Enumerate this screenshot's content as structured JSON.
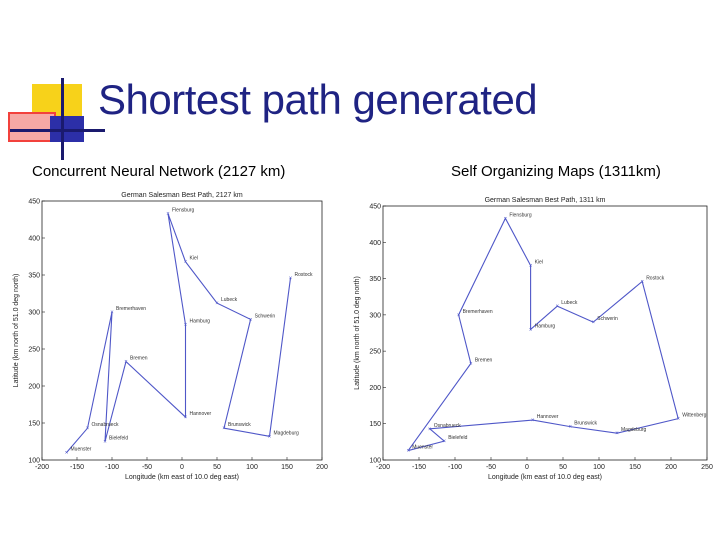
{
  "slide": {
    "title": "Shortest path generated",
    "caption_left": "Concurrent Neural Network (2127 km)",
    "caption_right": "Self Organizing Maps (1311km)"
  },
  "colors": {
    "title": "#1f2383",
    "path_line": "#4f57c8",
    "deco_yellow": "#f7d21a",
    "deco_red": "#f2413c",
    "deco_blue": "#2c2fa8"
  },
  "chart_data": [
    {
      "type": "line",
      "title": "German Salesman Best Path, 2127 km",
      "xlabel": "Longitude (km east of 10.0 deg east)",
      "ylabel": "Latitude (km north of 51.0 deg north)",
      "xlim": [
        -200,
        200
      ],
      "ylim": [
        100,
        450
      ],
      "xticks": [
        -200,
        -150,
        -100,
        -50,
        0,
        50,
        100,
        150,
        200
      ],
      "yticks": [
        100,
        150,
        200,
        250,
        300,
        350,
        400,
        450
      ],
      "grid": false,
      "cities": [
        {
          "name": "Flensburg",
          "x": -20,
          "y": 433
        },
        {
          "name": "Kiel",
          "x": 5,
          "y": 368
        },
        {
          "name": "Rostock",
          "x": 155,
          "y": 346
        },
        {
          "name": "Lubeck",
          "x": 50,
          "y": 312
        },
        {
          "name": "Bremerhaven",
          "x": -100,
          "y": 300
        },
        {
          "name": "Hamburg",
          "x": 5,
          "y": 283
        },
        {
          "name": "Schwerin",
          "x": 98,
          "y": 290
        },
        {
          "name": "Bremen",
          "x": -80,
          "y": 233
        },
        {
          "name": "Hannover",
          "x": 5,
          "y": 158
        },
        {
          "name": "Osnabrueck",
          "x": -135,
          "y": 143
        },
        {
          "name": "Brunswick",
          "x": 60,
          "y": 143
        },
        {
          "name": "Bielefeld",
          "x": -110,
          "y": 125
        },
        {
          "name": "Magdeburg",
          "x": 125,
          "y": 132
        },
        {
          "name": "Muenster",
          "x": -165,
          "y": 110
        }
      ],
      "path": [
        "Muenster",
        "Osnabrueck",
        "Bremerhaven",
        "Bielefeld",
        "Bremen",
        "Hannover",
        "Hamburg",
        "Flensburg",
        "Kiel",
        "Lubeck",
        "Schwerin",
        "Brunswick",
        "Magdeburg",
        "Rostock"
      ]
    },
    {
      "type": "line",
      "title": "German Salesman Best Path, 1311 km",
      "xlabel": "Longitude (km east of 10.0 deg east)",
      "ylabel": "Latitude (km north of 51.0 deg north)",
      "xlim": [
        -200,
        250
      ],
      "ylim": [
        100,
        450
      ],
      "xticks": [
        -200,
        -150,
        -100,
        -50,
        0,
        50,
        100,
        150,
        200,
        250
      ],
      "yticks": [
        100,
        150,
        200,
        250,
        300,
        350,
        400,
        450
      ],
      "grid": false,
      "cities": [
        {
          "name": "Flensburg",
          "x": -30,
          "y": 433
        },
        {
          "name": "Kiel",
          "x": 5,
          "y": 368
        },
        {
          "name": "Rostock",
          "x": 160,
          "y": 346
        },
        {
          "name": "Bremerhaven",
          "x": -95,
          "y": 300
        },
        {
          "name": "Lubeck",
          "x": 42,
          "y": 312
        },
        {
          "name": "Schwerin",
          "x": 92,
          "y": 290
        },
        {
          "name": "Hamburg",
          "x": 5,
          "y": 280
        },
        {
          "name": "Bremen",
          "x": -78,
          "y": 233
        },
        {
          "name": "Hannover",
          "x": 8,
          "y": 155
        },
        {
          "name": "Wittenberg",
          "x": 210,
          "y": 157
        },
        {
          "name": "Brunswick",
          "x": 60,
          "y": 146
        },
        {
          "name": "Osnabrueck",
          "x": -135,
          "y": 143
        },
        {
          "name": "Magdeburg",
          "x": 125,
          "y": 137
        },
        {
          "name": "Bielefeld",
          "x": -115,
          "y": 126
        },
        {
          "name": "Muenster",
          "x": -165,
          "y": 113
        }
      ],
      "path": [
        "Muenster",
        "Bremen",
        "Bremerhaven",
        "Flensburg",
        "Kiel",
        "Hamburg",
        "Lubeck",
        "Schwerin",
        "Rostock",
        "Wittenberg",
        "Magdeburg",
        "Brunswick",
        "Hannover",
        "Osnabrueck",
        "Bielefeld",
        "Muenster"
      ]
    }
  ]
}
